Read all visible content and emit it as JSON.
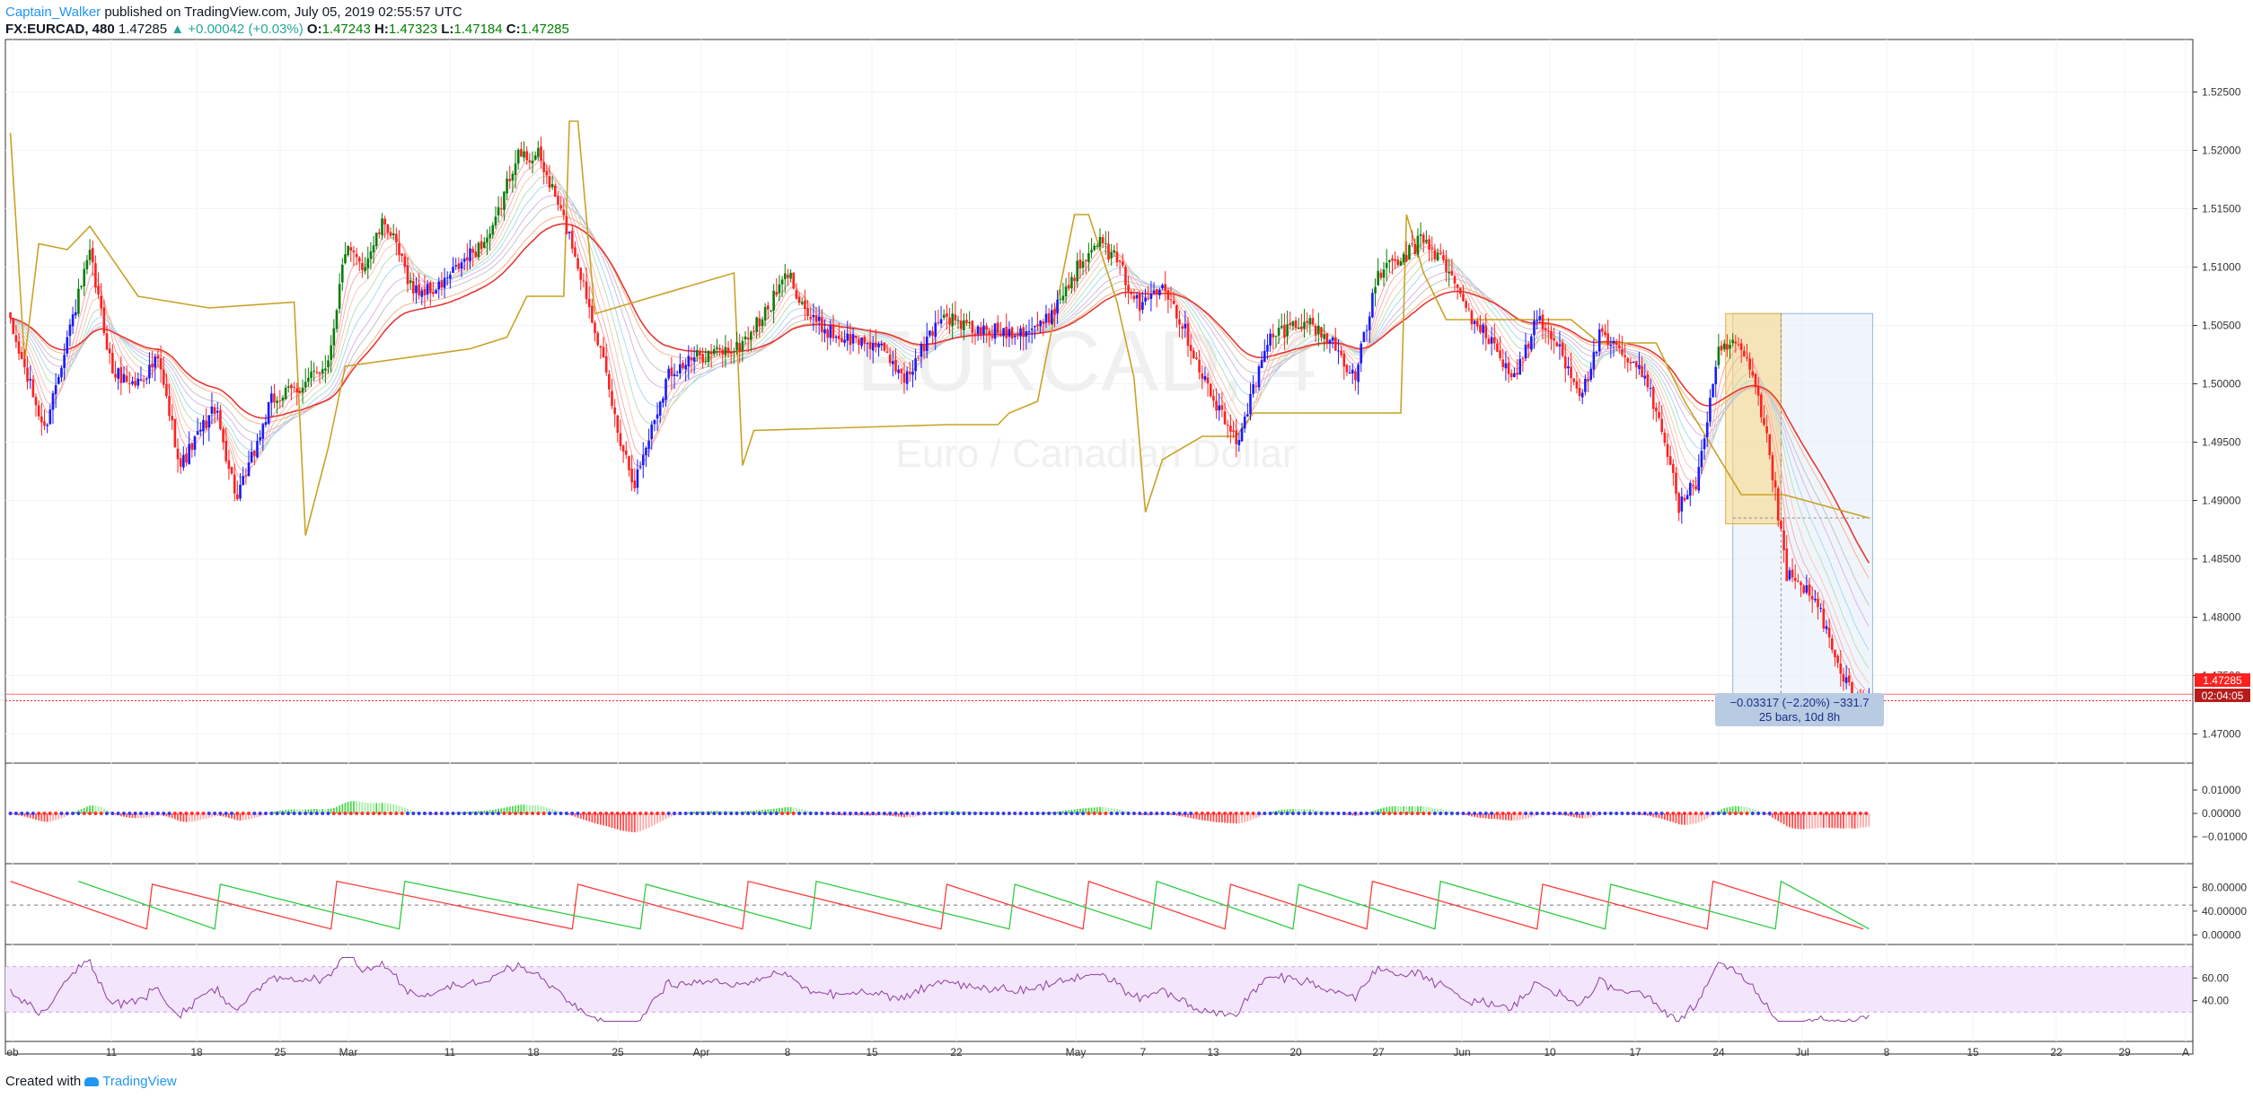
{
  "header": {
    "author": "Captain_Walker",
    "published": "published on TradingView.com, July 05, 2019 02:55:57 UTC",
    "symbol": "FX:EURCAD, 480",
    "last": "1.47285",
    "change": "▲ +0.00042 (+0.03%)",
    "o_label": "O:",
    "o": "1.47243",
    "h_label": "H:",
    "h": "1.47323",
    "l_label": "L:",
    "l": "1.47184",
    "c_label": "C:",
    "c": "1.47285"
  },
  "watermark": {
    "symbol": "EURCAD, 4",
    "description": "Euro / Canadian Dollar"
  },
  "footer": {
    "created": "Created with",
    "brand": "TradingView"
  },
  "price_badge": {
    "price": "1.47285",
    "countdown": "02:04:05"
  },
  "measure": {
    "line1": "−0.03317 (−2.20%) −331.7",
    "line2": "25 bars, 10d 8h"
  },
  "colors": {
    "bull": "#0a7d0a",
    "bear": "#ff2020",
    "neutral": "#1a1aff",
    "baseline": "#c9a227",
    "rsi_band": "#f3e5fb"
  },
  "chart_data": [
    {
      "type": "candlestick",
      "title": "FX:EURCAD, 480",
      "y_ticks": [
        1.525,
        1.52,
        1.515,
        1.51,
        1.505,
        1.5,
        1.495,
        1.49,
        1.485,
        1.48,
        1.475,
        1.47
      ],
      "y_tick_labels": [
        "1.52500",
        "1.52000",
        "1.51500",
        "1.51000",
        "1.50500",
        "1.50000",
        "1.49500",
        "1.49000",
        "1.48500",
        "1.48000",
        "1.47500",
        "1.47000"
      ],
      "ylim": [
        1.4675,
        1.5295
      ],
      "last_price": 1.47285,
      "anchors": [
        [
          0,
          1.505
        ],
        [
          12,
          1.496
        ],
        [
          20,
          1.504
        ],
        [
          28,
          1.511
        ],
        [
          36,
          1.501
        ],
        [
          44,
          1.5
        ],
        [
          52,
          1.502
        ],
        [
          60,
          1.493
        ],
        [
          72,
          1.498
        ],
        [
          80,
          1.49
        ],
        [
          92,
          1.4985
        ],
        [
          104,
          1.5
        ],
        [
          112,
          1.502
        ],
        [
          118,
          1.5115
        ],
        [
          124,
          1.51
        ],
        [
          132,
          1.514
        ],
        [
          142,
          1.508
        ],
        [
          150,
          1.508
        ],
        [
          160,
          1.5105
        ],
        [
          170,
          1.513
        ],
        [
          178,
          1.5195
        ],
        [
          186,
          1.5195
        ],
        [
          192,
          1.516
        ],
        [
          198,
          1.512
        ],
        [
          206,
          1.505
        ],
        [
          214,
          1.496
        ],
        [
          220,
          1.4915
        ],
        [
          232,
          1.501
        ],
        [
          244,
          1.5025
        ],
        [
          256,
          1.503
        ],
        [
          266,
          1.506
        ],
        [
          274,
          1.5095
        ],
        [
          282,
          1.5055
        ],
        [
          292,
          1.504
        ],
        [
          304,
          1.5035
        ],
        [
          316,
          1.5005
        ],
        [
          328,
          1.506
        ],
        [
          340,
          1.5045
        ],
        [
          352,
          1.5045
        ],
        [
          364,
          1.505
        ],
        [
          374,
          1.509
        ],
        [
          382,
          1.5125
        ],
        [
          390,
          1.5105
        ],
        [
          398,
          1.5065
        ],
        [
          406,
          1.509
        ],
        [
          414,
          1.5045
        ],
        [
          424,
          1.4985
        ],
        [
          432,
          1.495
        ],
        [
          444,
          1.504
        ],
        [
          456,
          1.5055
        ],
        [
          466,
          1.5035
        ],
        [
          474,
          1.5005
        ],
        [
          482,
          1.5095
        ],
        [
          490,
          1.5105
        ],
        [
          498,
          1.5125
        ],
        [
          506,
          1.51
        ],
        [
          514,
          1.506
        ],
        [
          522,
          1.5035
        ],
        [
          530,
          1.5005
        ],
        [
          538,
          1.5055
        ],
        [
          546,
          1.503
        ],
        [
          554,
          1.499
        ],
        [
          560,
          1.504
        ],
        [
          568,
          1.5025
        ],
        [
          576,
          1.5005
        ],
        [
          582,
          1.4965
        ],
        [
          588,
          1.4895
        ],
        [
          594,
          1.4915
        ],
        [
          602,
          1.5025
        ],
        [
          608,
          1.5035
        ],
        [
          614,
          1.5005
        ],
        [
          620,
          1.494
        ],
        [
          626,
          1.4835
        ],
        [
          632,
          1.4825
        ],
        [
          638,
          1.4805
        ],
        [
          644,
          1.4755
        ],
        [
          650,
          1.473
        ],
        [
          655,
          1.47285
        ]
      ],
      "ichimoku_baseline": [
        [
          0,
          1.5215
        ],
        [
          5,
          1.502
        ],
        [
          10,
          1.512
        ],
        [
          20,
          1.5115
        ],
        [
          28,
          1.5135
        ],
        [
          45,
          1.5075
        ],
        [
          70,
          1.5065
        ],
        [
          100,
          1.507
        ],
        [
          104,
          1.487
        ],
        [
          112,
          1.4945
        ],
        [
          118,
          1.5015
        ],
        [
          162,
          1.503
        ],
        [
          175,
          1.504
        ],
        [
          182,
          1.5075
        ],
        [
          195,
          1.5075
        ],
        [
          197,
          1.5225
        ],
        [
          200,
          1.5225
        ],
        [
          206,
          1.506
        ],
        [
          255,
          1.5095
        ],
        [
          258,
          1.493
        ],
        [
          262,
          1.496
        ],
        [
          330,
          1.4965
        ],
        [
          348,
          1.4965
        ],
        [
          352,
          1.4975
        ],
        [
          362,
          1.4985
        ],
        [
          375,
          1.5145
        ],
        [
          380,
          1.5145
        ],
        [
          390,
          1.507
        ],
        [
          396,
          1.5005
        ],
        [
          400,
          1.489
        ],
        [
          406,
          1.4935
        ],
        [
          420,
          1.4955
        ],
        [
          432,
          1.4955
        ],
        [
          438,
          1.4975
        ],
        [
          490,
          1.4975
        ],
        [
          492,
          1.5145
        ],
        [
          498,
          1.5095
        ],
        [
          506,
          1.5055
        ],
        [
          550,
          1.5055
        ],
        [
          560,
          1.5035
        ],
        [
          580,
          1.5035
        ],
        [
          590,
          1.4985
        ],
        [
          610,
          1.4905
        ],
        [
          625,
          1.4905
        ],
        [
          655,
          1.4885
        ]
      ],
      "measure_range": {
        "from_price": 1.50602,
        "to_price": 1.47285,
        "bars": 25
      }
    },
    {
      "type": "histogram",
      "name": "momentum",
      "y_tick_labels": [
        "0.01000",
        "0.00000",
        "−0.01000"
      ],
      "y_ticks": [
        0.01,
        0.0,
        -0.01
      ],
      "ylim": [
        -0.0155,
        0.0155
      ]
    },
    {
      "type": "line",
      "name": "stochastic",
      "y_tick_labels": [
        "80.00000",
        "40.00000",
        "0.00000"
      ],
      "y_ticks": [
        80,
        40,
        0
      ],
      "ylim": [
        -10,
        100
      ]
    },
    {
      "type": "line",
      "name": "rsi",
      "y_tick_labels": [
        "60.00",
        "40.00"
      ],
      "y_ticks": [
        60,
        40
      ],
      "ylim": [
        20,
        80
      ]
    }
  ],
  "x_axis": {
    "labels": [
      "eb",
      "11",
      "18",
      "25",
      "Mar",
      "11",
      "18",
      "25",
      "Apr",
      "8",
      "15",
      "22",
      "May",
      "7",
      "13",
      "20",
      "27",
      "Jun",
      "10",
      "17",
      "24",
      "Jul",
      "8",
      "15",
      "22",
      "29",
      "A"
    ],
    "positions": [
      14,
      124,
      219,
      312,
      388,
      501,
      594,
      688,
      781,
      877,
      971,
      1065,
      1198,
      1273,
      1351,
      1443,
      1535,
      1628,
      1726,
      1821,
      1914,
      2007,
      2101,
      2197,
      2290,
      2366,
      2434
    ]
  }
}
